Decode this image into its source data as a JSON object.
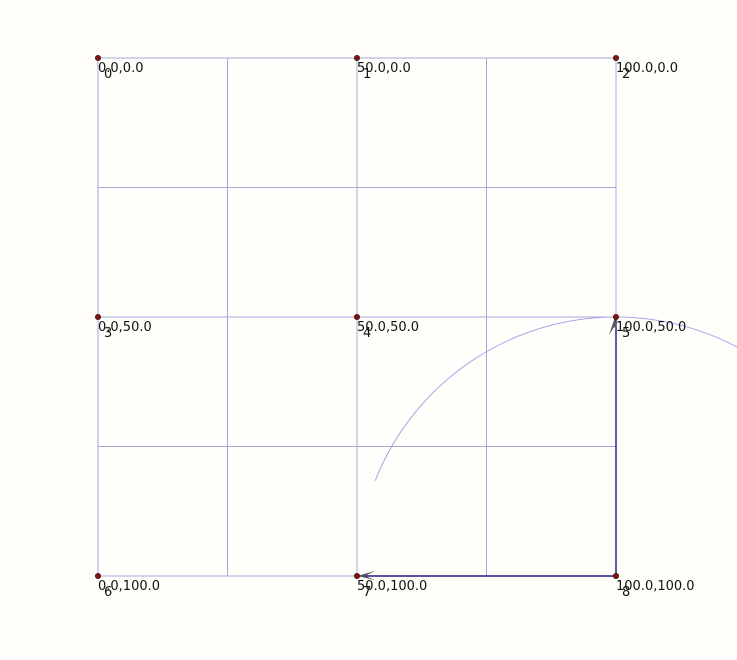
{
  "grid": {
    "x_range": [
      0,
      100
    ],
    "y_range": [
      0,
      100
    ],
    "minor_step": 25
  },
  "points": [
    {
      "index": "0",
      "coord": "0.0,0.0",
      "x": 0,
      "y": 0
    },
    {
      "index": "1",
      "coord": "50.0,0.0",
      "x": 50,
      "y": 0
    },
    {
      "index": "2",
      "coord": "100.0,0.0",
      "x": 100,
      "y": 0
    },
    {
      "index": "3",
      "coord": "0.0,50.0",
      "x": 0,
      "y": 50
    },
    {
      "index": "4",
      "coord": "50.0,50.0",
      "x": 50,
      "y": 50
    },
    {
      "index": "5",
      "coord": "100.0,50.0",
      "x": 100,
      "y": 50
    },
    {
      "index": "6",
      "coord": "0.0,100.0",
      "x": 0,
      "y": 100
    },
    {
      "index": "7",
      "coord": "50.0,100.0",
      "x": 50,
      "y": 100
    },
    {
      "index": "8",
      "coord": "100.0,100.0",
      "x": 100,
      "y": 100
    }
  ],
  "path": {
    "segments": [
      {
        "from": [
          50,
          100
        ],
        "to": [
          100,
          100
        ]
      },
      {
        "from": [
          100,
          100
        ],
        "to": [
          100,
          50
        ]
      }
    ],
    "arrow_points": [
      {
        "at": [
          100,
          50
        ],
        "direction": "up"
      },
      {
        "at": [
          50,
          100
        ],
        "direction": "left"
      }
    ],
    "arc": {
      "center": [
        100,
        100
      ],
      "radius": 50
    }
  },
  "colors": {
    "background": "#fffefa",
    "grid": "#a8a8d8",
    "arc": "#a8a8e8",
    "path": "#1a1a80",
    "node": "#8a1010",
    "arrow": "#555566"
  }
}
